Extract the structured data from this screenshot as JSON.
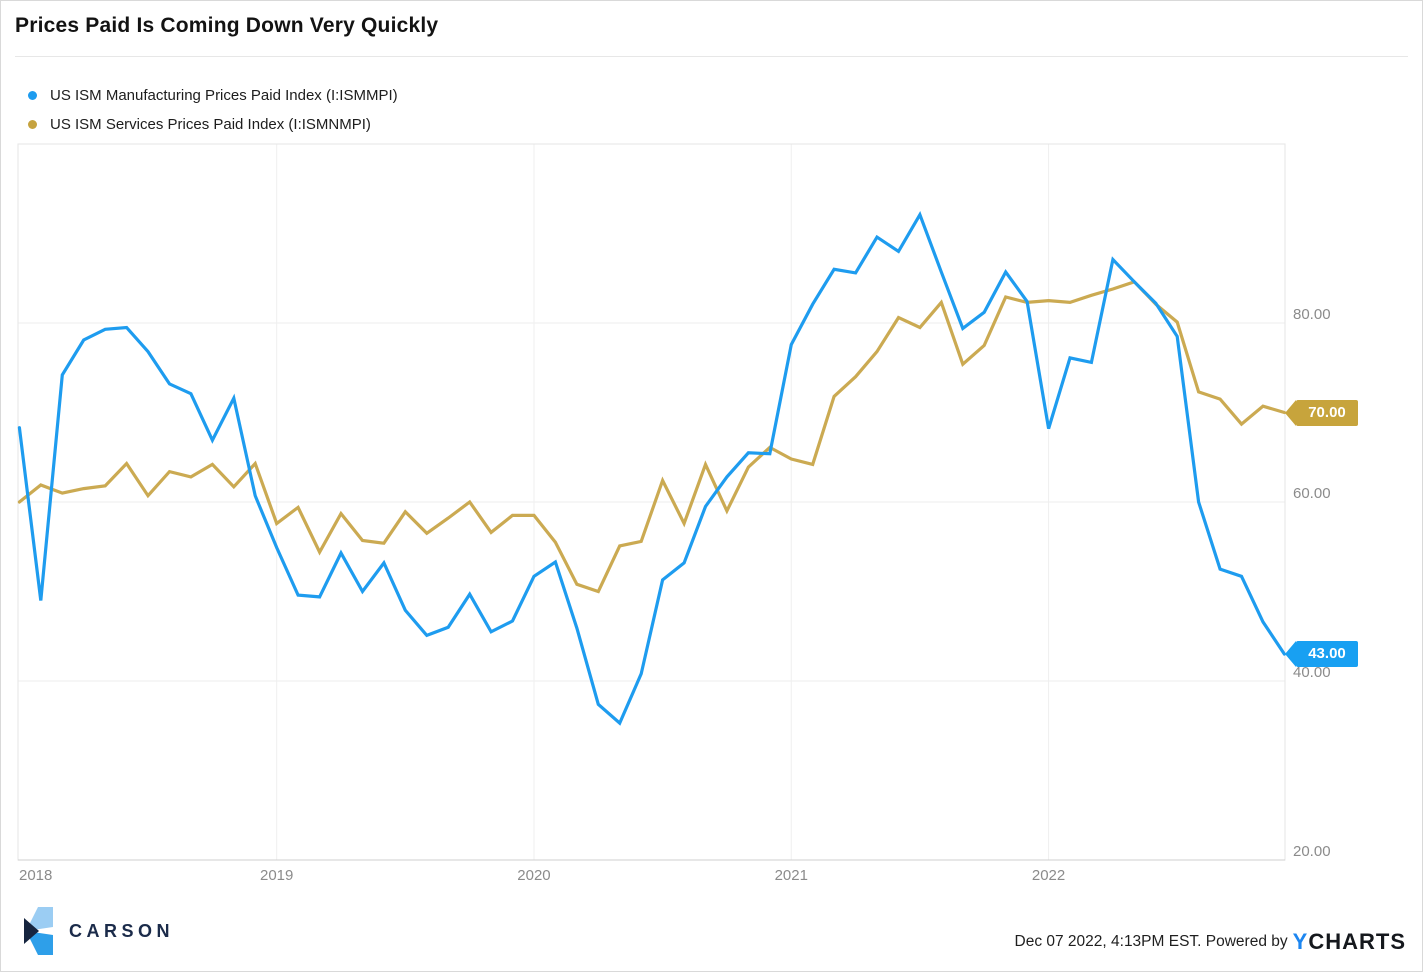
{
  "header": {
    "title": "Prices Paid Is Coming Down Very Quickly"
  },
  "legend": {
    "items": [
      {
        "label": "US ISM Manufacturing Prices Paid Index (I:ISMMPI)",
        "color": "#1E9CEF"
      },
      {
        "label": "US ISM Services Prices Paid Index (I:ISMNMPI)",
        "color": "#C6A33F"
      }
    ]
  },
  "chart_data": {
    "type": "line",
    "title": "Prices Paid Is Coming Down Very Quickly",
    "xlabel": "",
    "ylabel": "",
    "ylim": [
      20,
      100
    ],
    "grid": true,
    "legend_position": "top-left",
    "x": [
      "2017-12",
      "2018-01",
      "2018-02",
      "2018-03",
      "2018-04",
      "2018-05",
      "2018-06",
      "2018-07",
      "2018-08",
      "2018-09",
      "2018-10",
      "2018-11",
      "2018-12",
      "2019-01",
      "2019-02",
      "2019-03",
      "2019-04",
      "2019-05",
      "2019-06",
      "2019-07",
      "2019-08",
      "2019-09",
      "2019-10",
      "2019-11",
      "2019-12",
      "2020-01",
      "2020-02",
      "2020-03",
      "2020-04",
      "2020-05",
      "2020-06",
      "2020-07",
      "2020-08",
      "2020-09",
      "2020-10",
      "2020-11",
      "2020-12",
      "2021-01",
      "2021-02",
      "2021-03",
      "2021-04",
      "2021-05",
      "2021-06",
      "2021-07",
      "2021-08",
      "2021-09",
      "2021-10",
      "2021-11",
      "2021-12",
      "2022-01",
      "2022-02",
      "2022-03",
      "2022-04",
      "2022-05",
      "2022-06",
      "2022-07",
      "2022-08",
      "2022-09",
      "2022-10",
      "2022-11"
    ],
    "series": [
      {
        "id": "manufacturing",
        "name": "US ISM Manufacturing Prices Paid Index (I:ISMMPI)",
        "color": "#1E9CEF",
        "values": [
          68.3,
          49.0,
          74.2,
          78.1,
          79.3,
          79.5,
          76.8,
          73.2,
          72.1,
          66.9,
          71.6,
          60.7,
          54.9,
          49.6,
          49.4,
          54.3,
          50.0,
          53.2,
          47.9,
          45.1,
          46.0,
          49.7,
          45.5,
          46.7,
          51.7,
          53.3,
          45.9,
          37.4,
          35.3,
          40.8,
          51.3,
          53.2,
          59.5,
          62.8,
          65.5,
          65.4,
          77.6,
          82.1,
          86.0,
          85.6,
          89.6,
          88.0,
          92.1,
          85.7,
          79.4,
          81.2,
          85.7,
          82.4,
          68.2,
          76.1,
          75.6,
          87.1,
          84.6,
          82.2,
          78.5,
          60.0,
          52.5,
          51.7,
          46.6,
          43.0
        ]
      },
      {
        "id": "services",
        "name": "US ISM Services Prices Paid Index (I:ISMNMPI)",
        "color": "#CBAA52",
        "values": [
          60.0,
          61.9,
          61.0,
          61.5,
          61.8,
          64.3,
          60.7,
          63.4,
          62.8,
          64.2,
          61.7,
          64.3,
          57.6,
          59.4,
          54.4,
          58.7,
          55.7,
          55.4,
          58.9,
          56.5,
          58.2,
          60.0,
          56.6,
          58.5,
          58.5,
          55.5,
          50.8,
          50.0,
          55.1,
          55.6,
          62.4,
          57.6,
          64.2,
          59.0,
          63.9,
          66.1,
          64.8,
          64.2,
          71.8,
          74.0,
          76.8,
          80.6,
          79.5,
          82.3,
          75.4,
          77.5,
          82.9,
          82.3,
          82.5,
          82.3,
          83.1,
          83.8,
          84.6,
          82.1,
          80.1,
          72.3,
          71.5,
          68.7,
          70.7,
          70.0
        ]
      }
    ],
    "y_axis": {
      "ticks": [
        {
          "value": 80,
          "label": "80.00"
        },
        {
          "value": 60,
          "label": "60.00"
        },
        {
          "value": 40,
          "label": "40.00"
        },
        {
          "value": 20,
          "label": "20.00"
        }
      ]
    },
    "x_axis": {
      "year_labels": [
        {
          "label": "2018",
          "month_index": 0
        },
        {
          "label": "2019",
          "month_index": 12
        },
        {
          "label": "2020",
          "month_index": 24
        },
        {
          "label": "2021",
          "month_index": 36
        },
        {
          "label": "2022",
          "month_index": 48
        }
      ]
    },
    "badges": [
      {
        "label": "70.00",
        "value": 70.0,
        "series": "services",
        "color": "#C7A43C"
      },
      {
        "label": "43.00",
        "value": 43.0,
        "series": "manufacturing",
        "color": "#18A0F2"
      }
    ]
  },
  "footer": {
    "brand": "CARSON",
    "attribution": "Dec 07 2022, 4:13PM EST. Powered by",
    "ycharts_y": "Y",
    "ycharts_rest": "CHARTS"
  }
}
